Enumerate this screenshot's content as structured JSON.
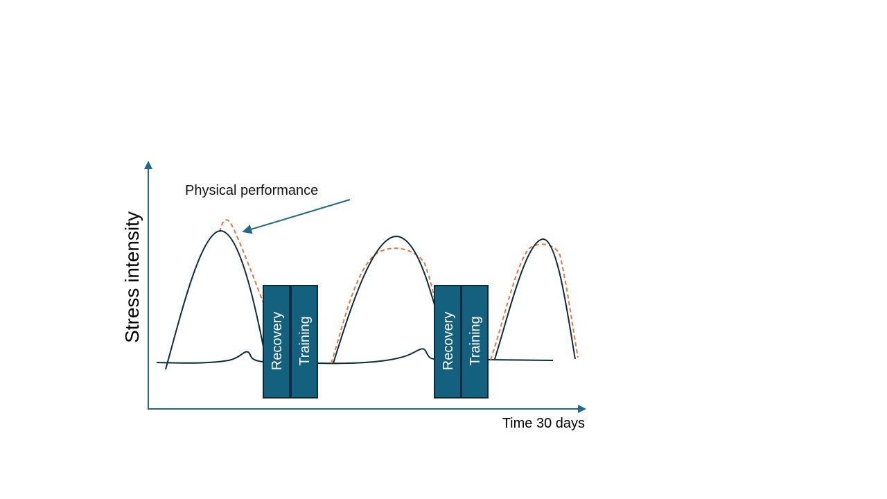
{
  "diagram": {
    "y_axis_label": "Stress intensity",
    "x_axis_label": "Time 30 days",
    "annotation": "Physical performance",
    "phase_blocks": [
      {
        "recovery_label": "Recovery",
        "training_label": "Training"
      },
      {
        "recovery_label": "Recovery",
        "training_label": "Training"
      }
    ],
    "colors": {
      "axis": "#1f6a8a",
      "stress_curve": "#0b2a3c",
      "performance_curve": "#e8743b",
      "block_fill": "#14607f",
      "block_stroke": "#0b2a3c",
      "block_text": "#ffffff",
      "arrow": "#1f6a8a"
    }
  }
}
